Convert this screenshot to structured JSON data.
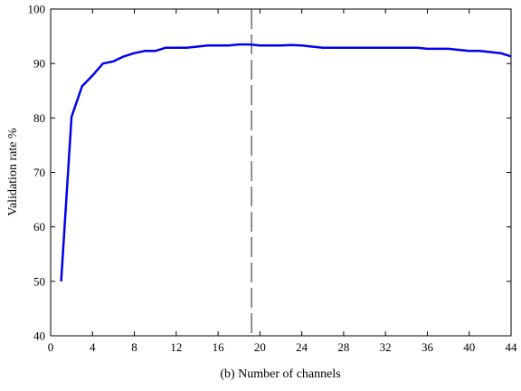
{
  "chart_data": {
    "type": "line",
    "title": "",
    "xlabel": "(b) Number of channels",
    "ylabel": "Validation rate %",
    "xlim": [
      0,
      44
    ],
    "ylim": [
      40,
      100
    ],
    "x_ticks": [
      0,
      4,
      8,
      12,
      16,
      20,
      24,
      28,
      32,
      36,
      40,
      44
    ],
    "y_ticks": [
      40,
      50,
      60,
      70,
      80,
      90,
      100
    ],
    "grid": false,
    "series": [
      {
        "color": "#0000ee",
        "x": [
          1,
          2,
          3,
          4,
          5,
          6,
          7,
          8,
          9,
          10,
          11,
          12,
          13,
          14,
          15,
          16,
          17,
          18,
          19,
          20,
          21,
          22,
          23,
          24,
          25,
          26,
          27,
          28,
          29,
          30,
          31,
          32,
          33,
          34,
          35,
          36,
          37,
          38,
          39,
          40,
          41,
          42,
          43,
          44
        ],
        "y": [
          50,
          80.2,
          85.8,
          87.8,
          90,
          90.4,
          91.3,
          91.9,
          92.3,
          92.3,
          92.9,
          92.9,
          92.9,
          93.1,
          93.3,
          93.3,
          93.3,
          93.5,
          93.5,
          93.3,
          93.3,
          93.3,
          93.4,
          93.3,
          93.1,
          92.9,
          92.9,
          92.9,
          92.9,
          92.9,
          92.9,
          92.9,
          92.9,
          92.9,
          92.9,
          92.7,
          92.7,
          92.7,
          92.5,
          92.3,
          92.3,
          92.1,
          91.9,
          91.3
        ]
      }
    ],
    "reference_line": {
      "orientation": "vertical",
      "x": 19.2,
      "style": "dashed",
      "color": "#444444"
    }
  }
}
